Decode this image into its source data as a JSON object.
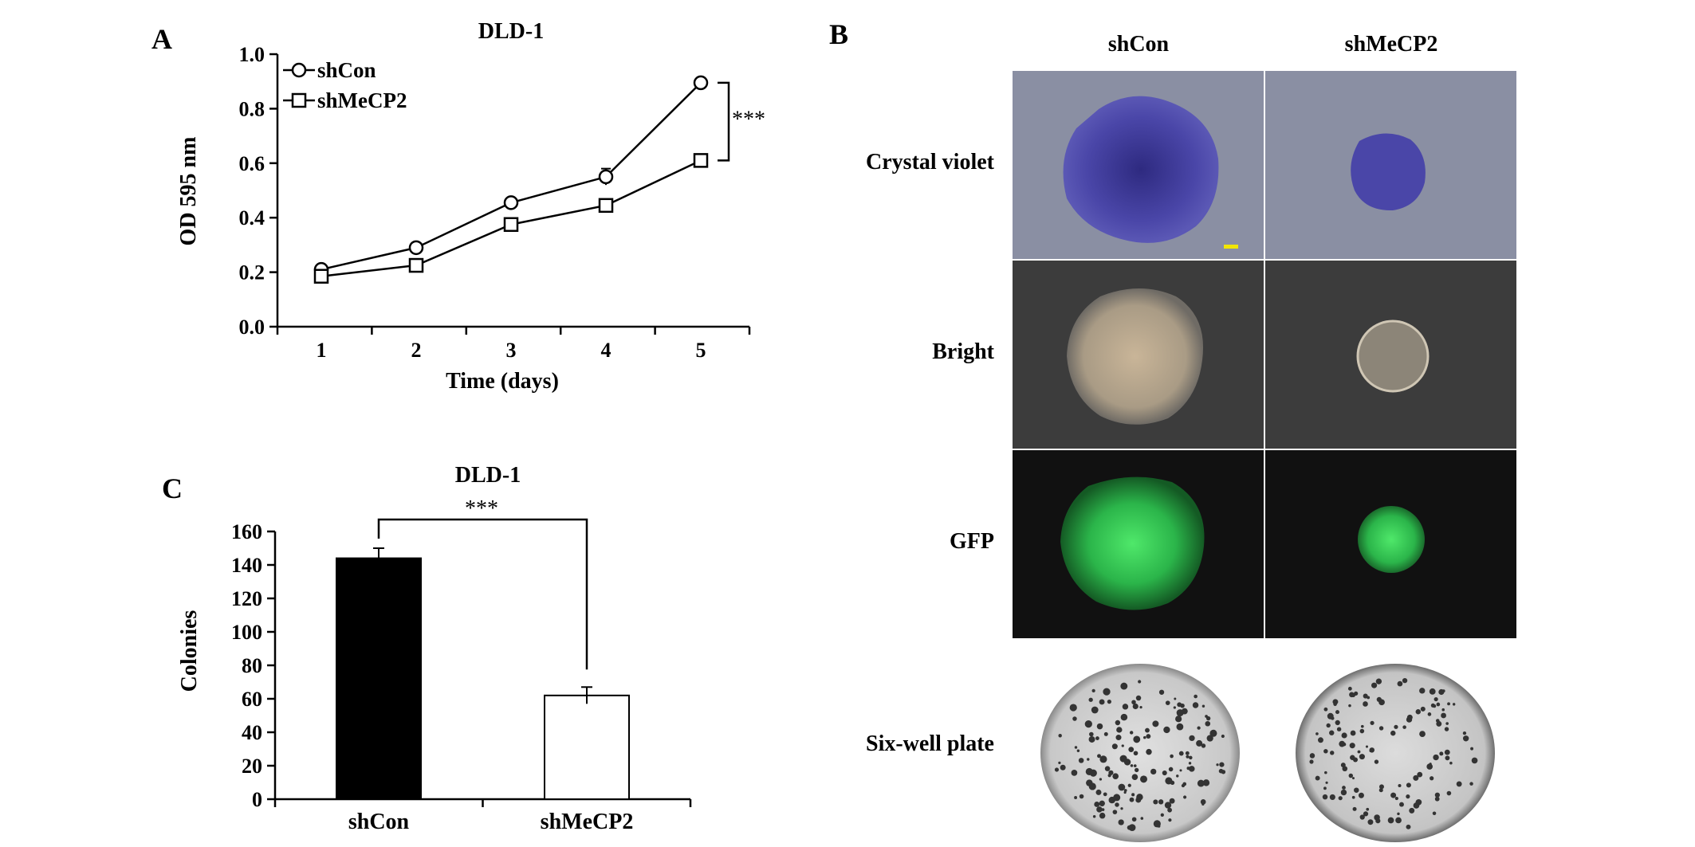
{
  "panelA": {
    "letter": "A",
    "chart_data": {
      "type": "line",
      "title": "DLD-1",
      "xlabel": "Time (days)",
      "ylabel": "OD 595 nm",
      "x": [
        1,
        2,
        3,
        4,
        5
      ],
      "xticks": [
        "1",
        "2",
        "3",
        "4",
        "5"
      ],
      "ylim": [
        0,
        1.0
      ],
      "yticks": [
        "0.0",
        "0.2",
        "0.4",
        "0.6",
        "0.8",
        "1.0"
      ],
      "series": [
        {
          "name": "shCon",
          "marker": "circle",
          "values": [
            0.21,
            0.29,
            0.455,
            0.55,
            0.895
          ],
          "errors": [
            0,
            0,
            0,
            0.03,
            0
          ]
        },
        {
          "name": "shMeCP2",
          "marker": "square",
          "values": [
            0.185,
            0.225,
            0.375,
            0.445,
            0.61
          ],
          "errors": [
            0,
            0,
            0,
            0,
            0
          ]
        }
      ],
      "legend_position": "top-left",
      "significance": "***",
      "grid": false
    }
  },
  "panelB": {
    "letter": "B",
    "columns": [
      "shCon",
      "shMeCP2"
    ],
    "rows": [
      "Crystal violet",
      "Bright",
      "GFP",
      "Six-well plate"
    ],
    "colors": {
      "crystal_bg": "#8a8fa3",
      "crystal_colony": "#4a46a8",
      "bright_bg": "#3c3c3c",
      "bright_colony": "#b7a48a",
      "gfp_bg": "#111111",
      "gfp_colony": "#2bb54a",
      "plate_bg": "#cfcfcf",
      "plate_dots": "#333333",
      "scale_bar": "#f2e600"
    }
  },
  "panelC": {
    "letter": "C",
    "chart_data": {
      "type": "bar",
      "title": "DLD-1",
      "ylabel": "Colonies",
      "xlabel": "",
      "categories": [
        "shCon",
        "shMeCP2"
      ],
      "values": [
        144,
        62
      ],
      "errors": [
        6,
        5
      ],
      "ylim": [
        0,
        160
      ],
      "yticks": [
        "0",
        "20",
        "40",
        "60",
        "80",
        "100",
        "120",
        "140",
        "160"
      ],
      "bar_colors": [
        "#000000",
        "#ffffff"
      ],
      "significance": "***",
      "grid": false
    }
  }
}
